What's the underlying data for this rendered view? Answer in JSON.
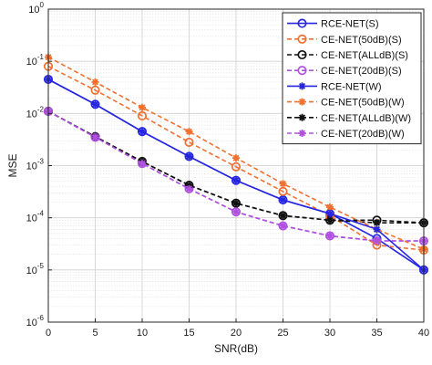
{
  "chart_data": {
    "type": "line",
    "xlabel": "SNR(dB)",
    "ylabel": "MSE",
    "yscale": "log",
    "xlim": [
      0,
      40
    ],
    "ylim": [
      1e-06,
      1
    ],
    "x_ticks": [
      "0",
      "5",
      "10",
      "15",
      "20",
      "25",
      "30",
      "35",
      "40"
    ],
    "y_ticks": [
      {
        "base": "10",
        "exp": "-6"
      },
      {
        "base": "10",
        "exp": "-5"
      },
      {
        "base": "10",
        "exp": "-4"
      },
      {
        "base": "10",
        "exp": "-3"
      },
      {
        "base": "10",
        "exp": "-2"
      },
      {
        "base": "10",
        "exp": "-1"
      },
      {
        "base": "10",
        "exp": "0"
      }
    ],
    "grid": true,
    "legend_position": "top-right",
    "x": [
      0,
      5,
      10,
      15,
      20,
      25,
      30,
      35,
      40
    ],
    "series": [
      {
        "name": "RCE-NET(S)",
        "color": "#2626e0",
        "dash": "solid",
        "marker": "circle",
        "values": [
          0.045,
          0.015,
          0.0045,
          0.0015,
          0.00052,
          0.00022,
          0.00012,
          4e-05,
          1e-05
        ]
      },
      {
        "name": "CE-NET(50dB)(S)",
        "color": "#f07030",
        "dash": "dashed",
        "marker": "circle",
        "values": [
          0.08,
          0.028,
          0.009,
          0.0028,
          0.00095,
          0.00032,
          0.00011,
          3e-05,
          2.4e-05
        ]
      },
      {
        "name": "CE-NET(ALLdB)(S)",
        "color": "#111111",
        "dash": "dashed",
        "marker": "circle",
        "values": [
          0.011,
          0.0036,
          0.0012,
          0.00042,
          0.00019,
          0.00011,
          9e-05,
          9e-05,
          8e-05
        ]
      },
      {
        "name": "CE-NET(20dB)(S)",
        "color": "#b050e0",
        "dash": "dashed",
        "marker": "circle",
        "values": [
          0.011,
          0.0035,
          0.0011,
          0.00036,
          0.00013,
          7e-05,
          4.5e-05,
          3.6e-05,
          3.6e-05
        ]
      },
      {
        "name": "RCE-NET(W)",
        "color": "#2626e0",
        "dash": "solid",
        "marker": "star",
        "values": [
          0.045,
          0.015,
          0.0045,
          0.0015,
          0.00052,
          0.00022,
          0.00012,
          6e-05,
          1e-05
        ]
      },
      {
        "name": "CE-NET(50dB)(W)",
        "color": "#f07030",
        "dash": "dashed",
        "marker": "star",
        "values": [
          0.12,
          0.04,
          0.013,
          0.0045,
          0.0014,
          0.00045,
          0.00016,
          6e-05,
          2.5e-05
        ]
      },
      {
        "name": "CE-NET(ALLdB)(W)",
        "color": "#111111",
        "dash": "dashed",
        "marker": "star",
        "values": [
          0.011,
          0.0036,
          0.0012,
          0.00042,
          0.00019,
          0.00011,
          9e-05,
          8e-05,
          8e-05
        ]
      },
      {
        "name": "CE-NET(20dB)(W)",
        "color": "#b050e0",
        "dash": "dashed",
        "marker": "star",
        "values": [
          0.011,
          0.0035,
          0.0011,
          0.00036,
          0.00013,
          7e-05,
          4.5e-05,
          3.6e-05,
          3.6e-05
        ]
      }
    ]
  }
}
